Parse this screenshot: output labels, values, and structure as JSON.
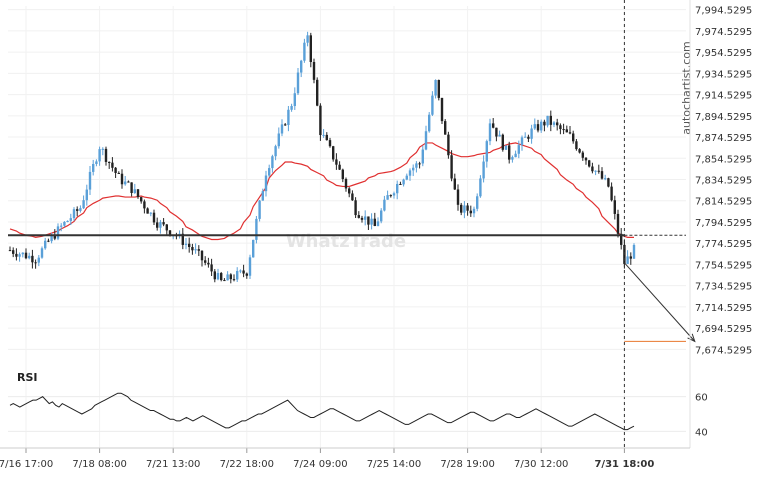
{
  "watermark": "autochartist.com",
  "brand_watermark": "WhatzTrade",
  "chart_data": {
    "type": "candlestick",
    "y_ticks": [
      "7,994.5295",
      "7,974.5295",
      "7,954.5295",
      "7,934.5295",
      "7,914.5295",
      "7,894.5295",
      "7,874.5295",
      "7,854.5295",
      "7,834.5295",
      "7,814.5295",
      "7,794.5295",
      "7,774.5295",
      "7,754.5295",
      "7,734.5295",
      "7,714.5295",
      "7,694.5295",
      "7,674.5295"
    ],
    "y_tick_values": [
      7994.5295,
      7974.5295,
      7954.5295,
      7934.5295,
      7914.5295,
      7894.5295,
      7874.5295,
      7854.5295,
      7834.5295,
      7814.5295,
      7794.5295,
      7774.5295,
      7754.5295,
      7734.5295,
      7714.5295,
      7694.5295,
      7674.5295
    ],
    "ylim": [
      7672,
      7998
    ],
    "x_ticks": [
      "7/16 17:00",
      "7/18 08:00",
      "7/21 13:00",
      "7/22 18:00",
      "7/24 09:00",
      "7/25 14:00",
      "7/28 19:00",
      "7/30 12:00",
      "7/31 18:00"
    ],
    "x_tick_index": [
      5,
      28,
      51,
      74,
      97,
      120,
      143,
      166,
      192
    ],
    "n_bars": 196,
    "current_index": 192,
    "support_level": 7782,
    "projection": {
      "from_index": 192,
      "from_value": 7756,
      "to_index": 214,
      "to_value": 7682
    },
    "target_level": 7682,
    "target_color": "#e8772e",
    "bull_color": "#5aa0d8",
    "bear_color": "#222222",
    "ma_color": "#e03030",
    "ma_values": [
      7788,
      7786,
      7784,
      7782,
      7781,
      7780,
      7781,
      7782,
      7784,
      7786,
      7788,
      7791,
      7795,
      7799,
      7803,
      7808,
      7812,
      7815,
      7817,
      7818,
      7819,
      7819,
      7818,
      7818,
      7818,
      7819,
      7818,
      7817,
      7815,
      7812,
      7808,
      7804,
      7800,
      7795,
      7790,
      7787,
      7783,
      7781,
      7779,
      7778,
      7778,
      7779,
      7781,
      7784,
      7788,
      7794,
      7801,
      7809,
      7818,
      7827,
      7836,
      7843,
      7848,
      7851,
      7851,
      7850,
      7849,
      7847,
      7844,
      7841,
      7838,
      7834,
      7831,
      7829,
      7828,
      7828,
      7829,
      7831,
      7833,
      7836,
      7838,
      7840,
      7841,
      7842,
      7843,
      7846,
      7850,
      7855,
      7860,
      7865,
      7869,
      7869,
      7867,
      7864,
      7861,
      7859,
      7857,
      7856,
      7856,
      7857,
      7858,
      7859,
      7860,
      7862,
      7864,
      7866,
      7868,
      7869,
      7868,
      7866,
      7864,
      7861,
      7858,
      7854,
      7849,
      7844,
      7839,
      7834,
      7830,
      7826,
      7822,
      7818,
      7813,
      7807,
      7800,
      7794,
      7788,
      7784,
      7781,
      7780,
      7780
    ],
    "ma_start_index": 76,
    "rsi_label": "RSI",
    "rsi_ticks": [
      60,
      40
    ],
    "rsi_ylim": [
      35,
      65
    ],
    "rsi_values": [
      55,
      56,
      55,
      54,
      55,
      56,
      57,
      58,
      58,
      59,
      60,
      58,
      56,
      57,
      55,
      54,
      56,
      55,
      54,
      53,
      52,
      51,
      50,
      51,
      52,
      53,
      55,
      56,
      57,
      58,
      59,
      60,
      61,
      62,
      62,
      61,
      60,
      58,
      57,
      56,
      55,
      54,
      53,
      52,
      52,
      51,
      50,
      49,
      48,
      47,
      47,
      46,
      46,
      47,
      48,
      47,
      46,
      47,
      48,
      49,
      48,
      47,
      46,
      45,
      44,
      43,
      42,
      42,
      43,
      44,
      45,
      46,
      46,
      47,
      48,
      49,
      50,
      50,
      51,
      52,
      53,
      54,
      55,
      56,
      57,
      58,
      56,
      54,
      52,
      51,
      50,
      49,
      48,
      48,
      49,
      50,
      51,
      52,
      53,
      53,
      52,
      51,
      50,
      49,
      48,
      47,
      46,
      46,
      47,
      48,
      49,
      50,
      51,
      52,
      51,
      50,
      49,
      48,
      47,
      46,
      45,
      44,
      44,
      45,
      46,
      47,
      48,
      49,
      50,
      50,
      49,
      48,
      47,
      46,
      45,
      45,
      46,
      47,
      48,
      49,
      50,
      51,
      51,
      50,
      49,
      48,
      47,
      46,
      46,
      47,
      48,
      49,
      50,
      50,
      49,
      48,
      48,
      49,
      50,
      51,
      52,
      53,
      52,
      51,
      50,
      49,
      48,
      47,
      46,
      45,
      44,
      43,
      43,
      44,
      45,
      46,
      47,
      48,
      49,
      50,
      49,
      48,
      47,
      46,
      45,
      44,
      43,
      42,
      41,
      41,
      42,
      43
    ]
  }
}
